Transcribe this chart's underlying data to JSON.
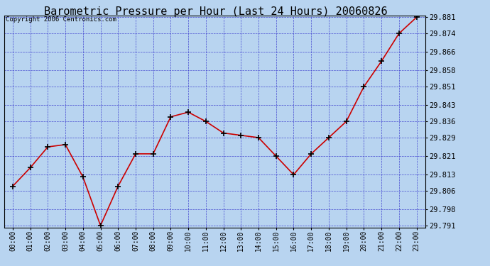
{
  "title": "Barometric Pressure per Hour (Last 24 Hours) 20060826",
  "copyright": "Copyright 2006 Centronics.com",
  "x_labels": [
    "00:00",
    "01:00",
    "02:00",
    "03:00",
    "04:00",
    "05:00",
    "06:00",
    "07:00",
    "08:00",
    "09:00",
    "10:00",
    "11:00",
    "12:00",
    "13:00",
    "14:00",
    "15:00",
    "16:00",
    "17:00",
    "18:00",
    "19:00",
    "20:00",
    "21:00",
    "22:00",
    "23:00"
  ],
  "y_values": [
    29.808,
    29.816,
    29.825,
    29.826,
    29.812,
    29.791,
    29.808,
    29.822,
    29.822,
    29.838,
    29.84,
    29.836,
    29.831,
    29.83,
    29.829,
    29.821,
    29.813,
    29.822,
    29.829,
    29.836,
    29.851,
    29.862,
    29.874,
    29.881
  ],
  "y_ticks": [
    29.791,
    29.798,
    29.806,
    29.813,
    29.821,
    29.829,
    29.836,
    29.843,
    29.851,
    29.858,
    29.866,
    29.874,
    29.881
  ],
  "y_min": 29.791,
  "y_max": 29.881,
  "line_color": "#cc0000",
  "marker_color": "#000000",
  "bg_color": "#b8d4f0",
  "grid_color": "#3333cc",
  "border_color": "#000000",
  "title_color": "#000000",
  "copyright_color": "#000000",
  "title_fontsize": 11,
  "copyright_fontsize": 6.5,
  "tick_fontsize": 7,
  "y_tick_fontsize": 7.5
}
